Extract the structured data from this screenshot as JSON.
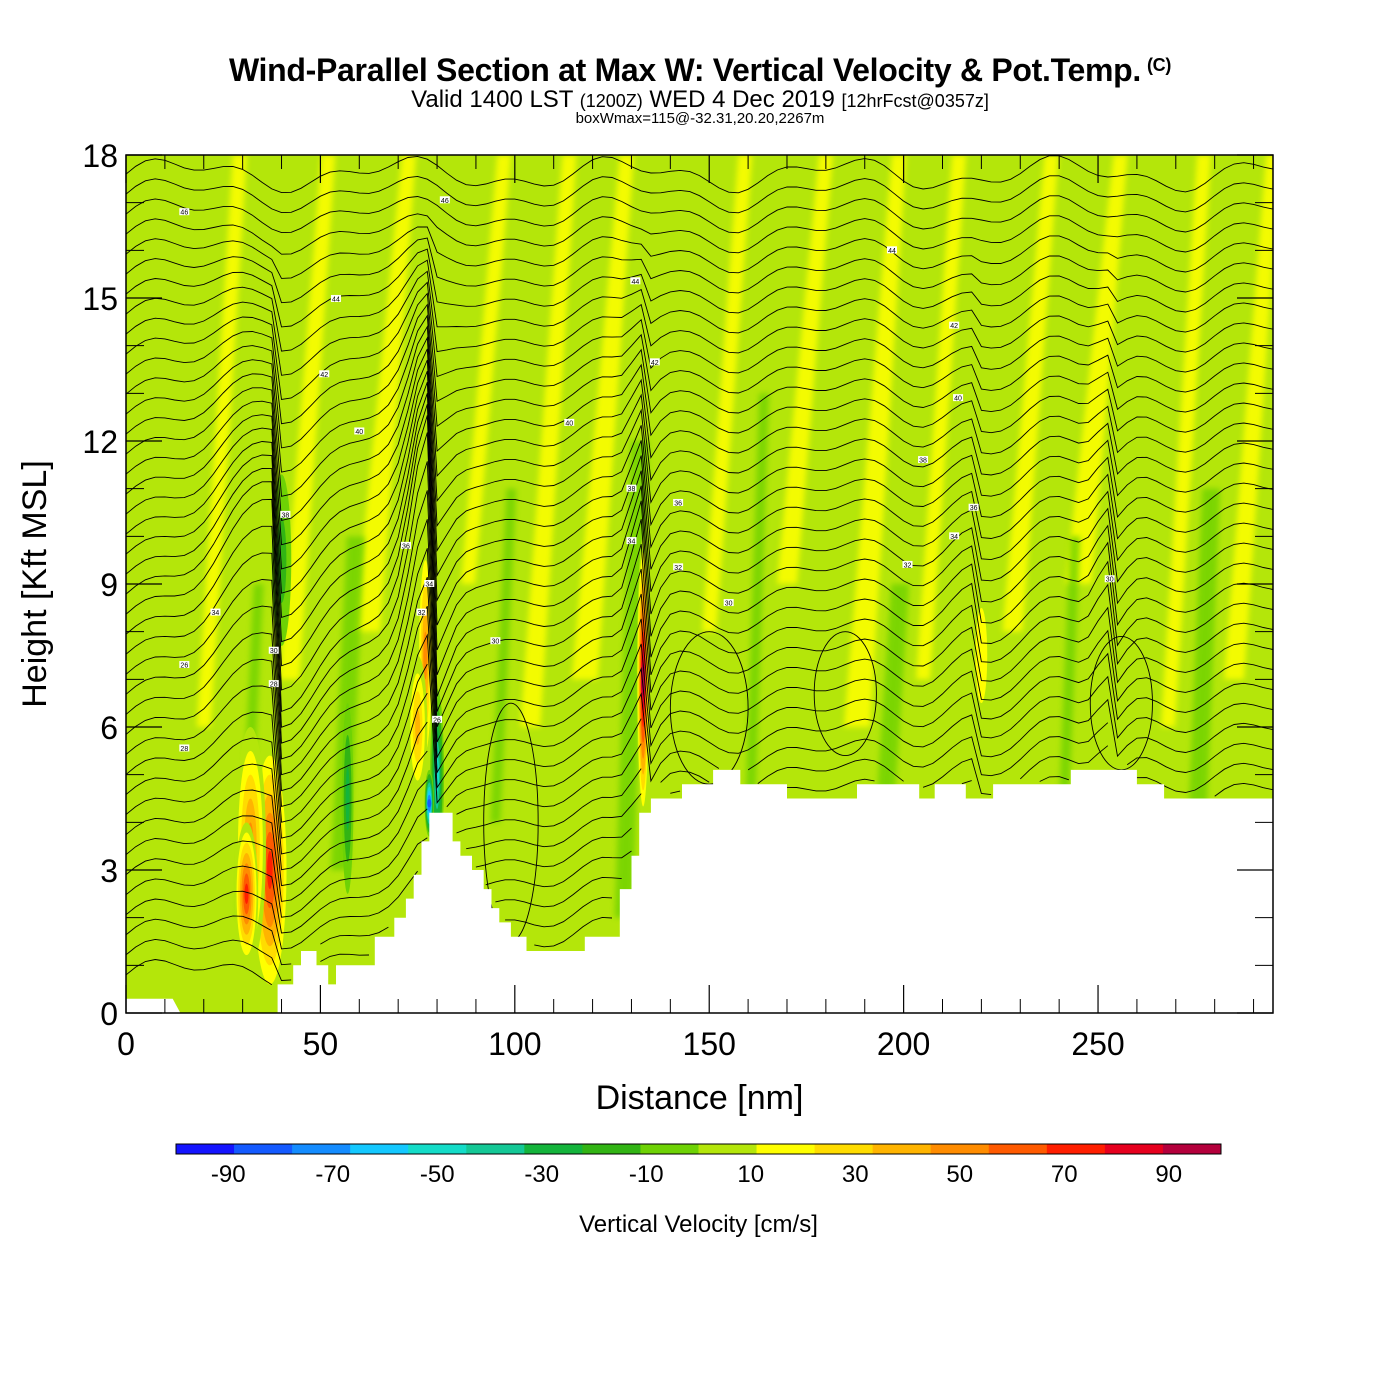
{
  "header": {
    "title": "Wind-Parallel Section at Max W: Vertical Velocity & Pot.Temp.",
    "copyright": "(C)",
    "valid_prefix": "Valid 1400 LST",
    "valid_utc": "(1200Z)",
    "valid_date": "WED 4 Dec 2019",
    "forecast": "[12hrFcst@0357z]",
    "box_info": "boxWmax=115@-32.31,20.20,2267m"
  },
  "chart_data": {
    "type": "heatmap",
    "title": "Wind-Parallel Section at Max W: Vertical Velocity & Pot.Temp.",
    "xlabel": "Distance [nm]",
    "ylabel": "Height [Kft MSL]",
    "xlim": [
      0,
      295
    ],
    "ylim": [
      0,
      18
    ],
    "x_ticks": [
      0,
      50,
      100,
      150,
      200,
      250
    ],
    "y_ticks": [
      0,
      3,
      6,
      9,
      12,
      15,
      18
    ],
    "x_tick_labels": [
      "0",
      "50",
      "100",
      "150",
      "200",
      "250"
    ],
    "y_tick_labels": [
      "0",
      "3",
      "6",
      "9",
      "12",
      "15",
      "18"
    ],
    "colorbar": {
      "label": "Vertical Velocity [cm/s]",
      "bounds": [
        -100,
        100
      ],
      "labels": [
        "-90",
        "-70",
        "-50",
        "-30",
        "-10",
        "10",
        "30",
        "50",
        "70",
        "90"
      ],
      "colors": [
        "#1414ff",
        "#145aff",
        "#148cff",
        "#14c8ff",
        "#14dcc8",
        "#14c896",
        "#14b43c",
        "#32b414",
        "#6ed205",
        "#b4e60a",
        "#ffff00",
        "#ffdc00",
        "#ffb400",
        "#ff8c00",
        "#ff5a00",
        "#ff1e00",
        "#e6001e",
        "#b4003c"
      ]
    },
    "terrain": [
      [
        0,
        0.3
      ],
      [
        12,
        0.3
      ],
      [
        14,
        0
      ],
      [
        18,
        0
      ],
      [
        39,
        0
      ],
      [
        39,
        0.6
      ],
      [
        43,
        0.6
      ],
      [
        43,
        1
      ],
      [
        45,
        1
      ],
      [
        45,
        1.3
      ],
      [
        49,
        1.3
      ],
      [
        49,
        1
      ],
      [
        52,
        1
      ],
      [
        52,
        0.6
      ],
      [
        54,
        0.6
      ],
      [
        54,
        1
      ],
      [
        64,
        1
      ],
      [
        64,
        1.6
      ],
      [
        69,
        1.6
      ],
      [
        69,
        2
      ],
      [
        72,
        2
      ],
      [
        72,
        2.4
      ],
      [
        74,
        2.4
      ],
      [
        74,
        2.9
      ],
      [
        76,
        2.9
      ],
      [
        76,
        3.6
      ],
      [
        78,
        3.6
      ],
      [
        78,
        4.2
      ],
      [
        84,
        4.2
      ],
      [
        84,
        3.6
      ],
      [
        86,
        3.6
      ],
      [
        86,
        3.3
      ],
      [
        89,
        3.3
      ],
      [
        89,
        3
      ],
      [
        92,
        3
      ],
      [
        92,
        2.6
      ],
      [
        94,
        2.6
      ],
      [
        94,
        2.2
      ],
      [
        96,
        2.2
      ],
      [
        96,
        1.9
      ],
      [
        99,
        1.9
      ],
      [
        99,
        1.6
      ],
      [
        103,
        1.6
      ],
      [
        103,
        1.3
      ],
      [
        118,
        1.3
      ],
      [
        118,
        1.6
      ],
      [
        127,
        1.6
      ],
      [
        127,
        2.6
      ],
      [
        130,
        2.6
      ],
      [
        130,
        3.3
      ],
      [
        132,
        3.3
      ],
      [
        132,
        4.2
      ],
      [
        135,
        4.2
      ],
      [
        135,
        4.5
      ],
      [
        143,
        4.5
      ],
      [
        143,
        4.8
      ],
      [
        151,
        4.8
      ],
      [
        151,
        5.1
      ],
      [
        158,
        5.1
      ],
      [
        158,
        4.8
      ],
      [
        170,
        4.8
      ],
      [
        170,
        4.5
      ],
      [
        188,
        4.5
      ],
      [
        188,
        4.8
      ],
      [
        204,
        4.8
      ],
      [
        204,
        4.5
      ],
      [
        208,
        4.5
      ],
      [
        208,
        4.8
      ],
      [
        216,
        4.8
      ],
      [
        216,
        4.5
      ],
      [
        223,
        4.5
      ],
      [
        223,
        4.8
      ],
      [
        243,
        4.8
      ],
      [
        243,
        5.1
      ],
      [
        260,
        5.1
      ],
      [
        260,
        4.8
      ],
      [
        267,
        4.8
      ],
      [
        267,
        4.5
      ],
      [
        295,
        4.5
      ]
    ],
    "vv_features": [
      {
        "x": 37,
        "z": 3.0,
        "width": 5,
        "height": 2.8,
        "value": 70
      },
      {
        "x": 32,
        "z": 3.5,
        "width": 4,
        "height": 2.5,
        "value": 45
      },
      {
        "x": 31,
        "z": 2.5,
        "width": 3,
        "height": 1.5,
        "value": 65
      },
      {
        "x": 77,
        "z": 7.5,
        "width": 2,
        "height": 2.5,
        "value": 45
      },
      {
        "x": 75,
        "z": 6.0,
        "width": 2.5,
        "height": 1.5,
        "value": 35
      },
      {
        "x": 133,
        "z": 7.0,
        "width": 1.6,
        "height": 3.0,
        "value": 90
      },
      {
        "x": 220,
        "z": 7.5,
        "width": 3,
        "height": 2.0,
        "value": 20
      },
      {
        "x": 80,
        "z": 5.0,
        "width": 1.8,
        "height": 1.8,
        "value": -50
      },
      {
        "x": 78,
        "z": 4.4,
        "width": 1.2,
        "height": 0.7,
        "value": -80
      },
      {
        "x": 40,
        "z": 9.5,
        "width": 2.5,
        "height": 1.8,
        "value": -20
      },
      {
        "x": 57,
        "z": 4.5,
        "width": 1.5,
        "height": 2.0,
        "value": -30
      }
    ],
    "theta_levels": [
      "26",
      "28",
      "30",
      "32",
      "34",
      "36",
      "38",
      "40",
      "42",
      "44",
      "46"
    ],
    "theta_labels": [
      {
        "x": 15,
        "z": 16.8,
        "text": "46"
      },
      {
        "x": 54,
        "z": 14.98,
        "text": "44"
      },
      {
        "x": 82,
        "z": 17.05,
        "text": "46"
      },
      {
        "x": 197,
        "z": 16.0,
        "text": "44"
      },
      {
        "x": 131,
        "z": 15.35,
        "text": "44"
      },
      {
        "x": 51,
        "z": 13.4,
        "text": "42"
      },
      {
        "x": 136,
        "z": 13.65,
        "text": "42"
      },
      {
        "x": 213,
        "z": 14.42,
        "text": "42"
      },
      {
        "x": 60,
        "z": 12.2,
        "text": "40"
      },
      {
        "x": 114,
        "z": 12.38,
        "text": "40"
      },
      {
        "x": 214,
        "z": 12.9,
        "text": "40"
      },
      {
        "x": 205,
        "z": 11.6,
        "text": "38"
      },
      {
        "x": 130,
        "z": 11.0,
        "text": "38"
      },
      {
        "x": 41,
        "z": 10.45,
        "text": "38"
      },
      {
        "x": 72,
        "z": 9.8,
        "text": "36"
      },
      {
        "x": 142,
        "z": 10.7,
        "text": "36"
      },
      {
        "x": 218,
        "z": 10.6,
        "text": "36"
      },
      {
        "x": 130,
        "z": 9.9,
        "text": "34"
      },
      {
        "x": 23,
        "z": 8.4,
        "text": "34"
      },
      {
        "x": 78,
        "z": 9.0,
        "text": "34"
      },
      {
        "x": 213,
        "z": 10.0,
        "text": "34"
      },
      {
        "x": 142,
        "z": 9.35,
        "text": "32"
      },
      {
        "x": 201,
        "z": 9.4,
        "text": "32"
      },
      {
        "x": 76,
        "z": 8.4,
        "text": "32"
      },
      {
        "x": 38,
        "z": 7.6,
        "text": "30"
      },
      {
        "x": 95,
        "z": 7.8,
        "text": "30"
      },
      {
        "x": 155,
        "z": 8.6,
        "text": "30"
      },
      {
        "x": 253,
        "z": 9.1,
        "text": "30"
      },
      {
        "x": 15,
        "z": 7.3,
        "text": "26"
      },
      {
        "x": 38,
        "z": 6.9,
        "text": "28"
      },
      {
        "x": 80,
        "z": 6.15,
        "text": "26"
      },
      {
        "x": 15,
        "z": 5.55,
        "text": "28"
      }
    ]
  }
}
